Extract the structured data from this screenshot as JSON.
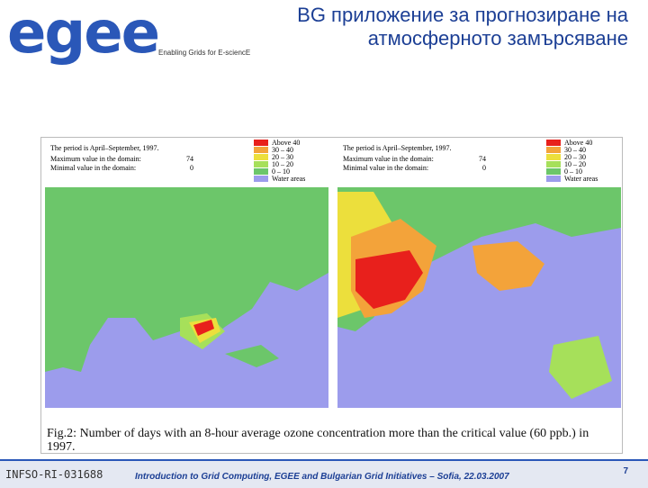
{
  "header": {
    "logo": "egee",
    "tagline": "Enabling Grids for E-sciencE",
    "title_lines": [
      "BG приложение за прогнозиране на",
      "атмосферното замърсяване"
    ]
  },
  "maps": [
    {
      "period": "The period is April–September, 1997.",
      "stats": [
        {
          "label": "Maximum value in the domain:",
          "value": 74
        },
        {
          "label": "Minimal value in the domain:",
          "value": 0
        }
      ],
      "legend": [
        {
          "label": "Above 40",
          "color": "#e8201c"
        },
        {
          "label": "30 – 40",
          "color": "#f3a33a"
        },
        {
          "label": "20 – 30",
          "color": "#ecdf3c"
        },
        {
          "label": "10 – 20",
          "color": "#a6e05a"
        },
        {
          "label": "0 – 10",
          "color": "#6cc66a"
        },
        {
          "label": "Water areas",
          "color": "#9c9cec"
        }
      ]
    },
    {
      "period": "The period is April–September, 1997.",
      "stats": [
        {
          "label": "Maximum value in the domain:",
          "value": 74
        },
        {
          "label": "Minimal value in the domain:",
          "value": 0
        }
      ],
      "legend": [
        {
          "label": "Above 40",
          "color": "#e8201c"
        },
        {
          "label": "30 – 40",
          "color": "#f3a33a"
        },
        {
          "label": "20 – 30",
          "color": "#ecdf3c"
        },
        {
          "label": "10 – 20",
          "color": "#a6e05a"
        },
        {
          "label": "0 – 10",
          "color": "#6cc66a"
        },
        {
          "label": "Water areas",
          "color": "#9c9cec"
        }
      ]
    }
  ],
  "caption": "Fig.2:  Number of days with an 8-hour average ozone concentration more than the critical value (60 ppb.) in 1997.",
  "footer": {
    "project": "INFSO-RI-031688",
    "event": "Introduction to Grid Computing, EGEE and Bulgarian Grid Initiatives – Sofia, 22.03.2007",
    "page": "7"
  }
}
